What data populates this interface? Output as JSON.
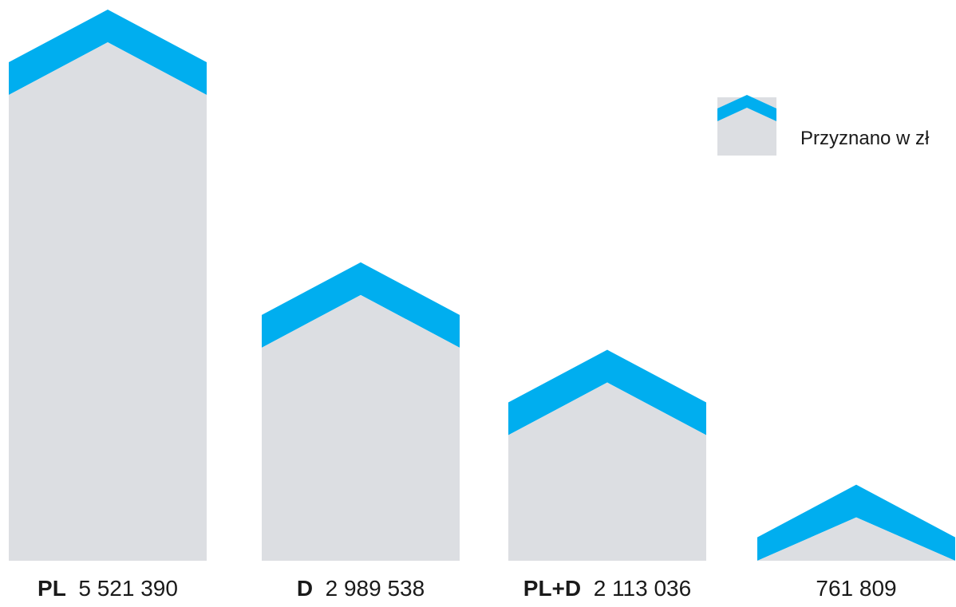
{
  "chart_data": {
    "type": "bar",
    "title": "",
    "xlabel": "",
    "ylabel": "",
    "categories": [
      "PL",
      "D",
      "PL+D",
      ""
    ],
    "values": [
      5521390,
      2989538,
      2113036,
      761809
    ],
    "value_labels": [
      "5 521 390",
      "2 989 538",
      "2 113 036",
      "761 809"
    ],
    "ylim": [
      0,
      6000000
    ],
    "grid": false,
    "legend": {
      "placement": "top-right",
      "entries": [
        {
          "label": "Przyznano w zł"
        }
      ]
    },
    "series": [
      {
        "name": "Przyznano w zł",
        "values": [
          5521390,
          2989538,
          2113036,
          761809
        ]
      }
    ],
    "colors": {
      "bar_body": "#dcdee2",
      "bar_roof": "#00aeef",
      "text": "#1a1a1a"
    }
  }
}
